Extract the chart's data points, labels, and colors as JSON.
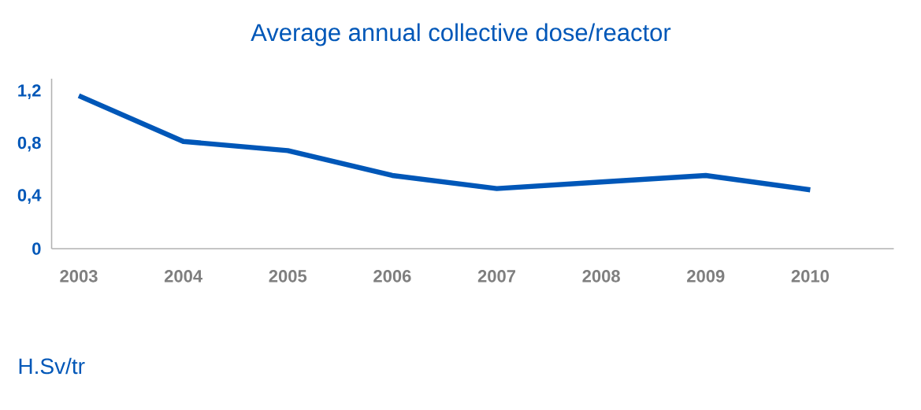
{
  "chart_data": {
    "type": "line",
    "title": "Average annual collective dose/reactor",
    "ylabel": "H.Sv/tr",
    "categories": [
      "2003",
      "2004",
      "2005",
      "2006",
      "2007",
      "2008",
      "2009",
      "2010"
    ],
    "series": [
      {
        "color": "#0057b8",
        "values": [
          1.17,
          0.82,
          0.75,
          0.56,
          0.46,
          0.51,
          0.56,
          0.45
        ]
      }
    ],
    "ylim": [
      0,
      1.3
    ],
    "yticks": [
      {
        "value": 0,
        "label": "0"
      },
      {
        "value": 0.4,
        "label": "0,4"
      },
      {
        "value": 0.8,
        "label": "0,8"
      },
      {
        "value": 1.2,
        "label": "1,2"
      }
    ],
    "grid": false,
    "marker": "none",
    "line_style": "solid"
  }
}
